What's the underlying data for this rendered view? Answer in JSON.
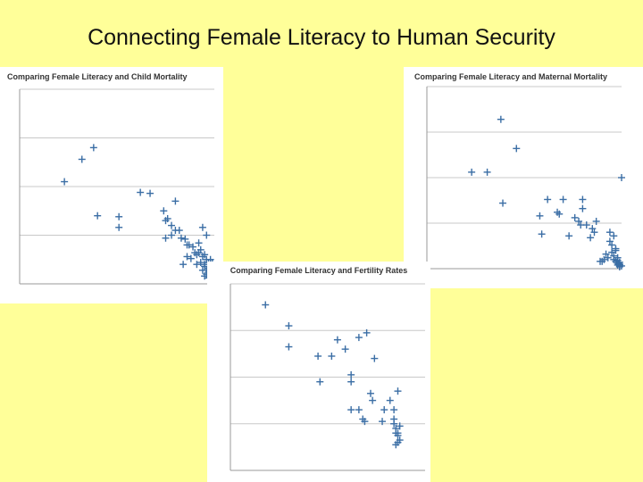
{
  "slide": {
    "title": "Connecting Female Literacy to Human Security"
  },
  "chart_data": [
    {
      "type": "scatter",
      "title": "Comparing Female Literacy and Child Mortality",
      "xlabel": "",
      "ylabel": "",
      "xlim": [
        0,
        100
      ],
      "ylim": [
        0,
        200
      ],
      "grid": true,
      "color": "#3b6ea5",
      "points": [
        [
          23,
          105
        ],
        [
          32,
          128
        ],
        [
          38,
          140
        ],
        [
          40,
          70
        ],
        [
          51,
          69
        ],
        [
          51,
          58
        ],
        [
          62,
          94
        ],
        [
          67,
          93
        ],
        [
          74,
          75
        ],
        [
          75,
          65
        ],
        [
          76,
          67
        ],
        [
          78,
          60
        ],
        [
          80,
          85
        ],
        [
          82,
          55
        ],
        [
          83,
          47
        ],
        [
          85,
          46
        ],
        [
          86,
          40
        ],
        [
          87,
          40
        ],
        [
          89,
          38
        ],
        [
          90,
          32
        ],
        [
          91,
          30
        ],
        [
          92,
          32
        ],
        [
          93,
          35
        ],
        [
          94,
          58
        ],
        [
          94,
          28
        ],
        [
          95,
          20
        ],
        [
          95,
          18
        ],
        [
          96,
          25
        ],
        [
          96,
          14
        ],
        [
          97,
          22
        ],
        [
          97,
          16
        ],
        [
          97,
          12
        ],
        [
          98,
          15
        ],
        [
          98,
          20
        ],
        [
          98,
          25
        ],
        [
          98,
          10
        ],
        [
          99,
          8
        ],
        [
          99,
          12
        ],
        [
          99,
          18
        ],
        [
          99,
          22
        ],
        [
          86,
          28
        ],
        [
          88,
          26
        ],
        [
          80,
          55
        ],
        [
          91,
          20
        ],
        [
          93,
          22
        ],
        [
          95,
          8
        ],
        [
          96,
          10
        ],
        [
          97,
          6
        ],
        [
          94,
          14
        ],
        [
          95,
          30
        ],
        [
          96,
          50
        ],
        [
          92,
          42
        ],
        [
          84,
          20
        ],
        [
          78,
          50
        ],
        [
          75,
          47
        ]
      ]
    },
    {
      "type": "scatter",
      "title": "Comparing Female Literacy and Maternal Mortality",
      "xlabel": "",
      "ylabel": "",
      "xlim": [
        0,
        100
      ],
      "ylim": [
        0,
        1000
      ],
      "grid": true,
      "color": "#3b6ea5",
      "points": [
        [
          23,
          530
        ],
        [
          31,
          530
        ],
        [
          38,
          820
        ],
        [
          39,
          360
        ],
        [
          46,
          660
        ],
        [
          58,
          290
        ],
        [
          59,
          190
        ],
        [
          62,
          380
        ],
        [
          67,
          310
        ],
        [
          68,
          300
        ],
        [
          70,
          380
        ],
        [
          73,
          180
        ],
        [
          76,
          280
        ],
        [
          78,
          260
        ],
        [
          79,
          240
        ],
        [
          80,
          380
        ],
        [
          80,
          330
        ],
        [
          82,
          240
        ],
        [
          84,
          170
        ],
        [
          85,
          220
        ],
        [
          86,
          200
        ],
        [
          87,
          260
        ],
        [
          89,
          40
        ],
        [
          90,
          40
        ],
        [
          91,
          50
        ],
        [
          92,
          80
        ],
        [
          93,
          60
        ],
        [
          94,
          150
        ],
        [
          94,
          200
        ],
        [
          95,
          130
        ],
        [
          95,
          90
        ],
        [
          96,
          50
        ],
        [
          96,
          70
        ],
        [
          97,
          110
        ],
        [
          97,
          40
        ],
        [
          98,
          30
        ],
        [
          98,
          20
        ],
        [
          98,
          60
        ],
        [
          99,
          10
        ],
        [
          99,
          25
        ],
        [
          99,
          35
        ],
        [
          99,
          15
        ],
        [
          100,
          500
        ],
        [
          96,
          180
        ],
        [
          97,
          100
        ],
        [
          98,
          45
        ],
        [
          99,
          20
        ],
        [
          100,
          15
        ]
      ]
    },
    {
      "type": "scatter",
      "title": "Comparing Female Literacy and Fertility Rates",
      "xlabel": "",
      "ylabel": "",
      "xlim": [
        0,
        100
      ],
      "ylim": [
        0,
        8
      ],
      "grid": true,
      "color": "#3b6ea5",
      "points": [
        [
          18,
          7.1
        ],
        [
          30,
          6.2
        ],
        [
          30,
          5.3
        ],
        [
          45,
          4.9
        ],
        [
          52,
          4.9
        ],
        [
          55,
          5.6
        ],
        [
          46,
          3.8
        ],
        [
          62,
          4.1
        ],
        [
          66,
          5.7
        ],
        [
          62,
          3.8
        ],
        [
          59,
          5.2
        ],
        [
          70,
          5.9
        ],
        [
          72,
          3.3
        ],
        [
          62,
          2.6
        ],
        [
          73,
          3.0
        ],
        [
          74,
          4.8
        ],
        [
          66,
          2.6
        ],
        [
          68,
          2.2
        ],
        [
          69,
          2.1
        ],
        [
          78,
          2.1
        ],
        [
          79,
          2.6
        ],
        [
          82,
          3.0
        ],
        [
          84,
          2.6
        ],
        [
          84,
          2.2
        ],
        [
          84,
          2.0
        ],
        [
          85,
          1.8
        ],
        [
          85,
          1.6
        ],
        [
          86,
          1.5
        ],
        [
          87,
          1.3
        ],
        [
          86,
          1.2
        ],
        [
          85,
          1.1
        ],
        [
          86,
          3.4
        ],
        [
          87,
          1.9
        ],
        [
          86,
          1.6
        ]
      ]
    }
  ]
}
